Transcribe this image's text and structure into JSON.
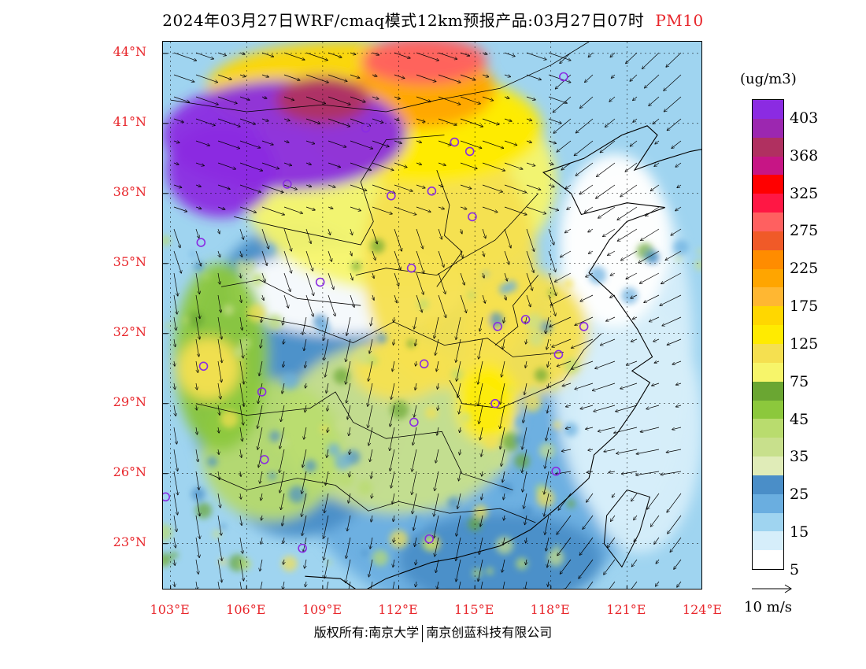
{
  "title": {
    "main": "2024年03月27日WRF/cmaq模式12km预报产品:03月27日07时",
    "pollutant": "PM10",
    "pollutant_color": "#e8262b"
  },
  "map": {
    "latitude_labels": [
      "44°N",
      "41°N",
      "38°N",
      "35°N",
      "32°N",
      "29°N",
      "26°N",
      "23°N"
    ],
    "longitude_labels": [
      "103°E",
      "106°E",
      "109°E",
      "112°E",
      "115°E",
      "118°E",
      "121°E",
      "124°E"
    ],
    "axis_label_color": "#e8262b",
    "lon_range": [
      102.7,
      124
    ],
    "lat_range": [
      21.0,
      44.5
    ],
    "wind_arrow_color": "#000000",
    "city_marker_color": "#8a2be2"
  },
  "legend": {
    "unit": "(ug/m3)",
    "levels": [
      {
        "label": "403",
        "color": "#8b2be2"
      },
      {
        "label": "",
        "color": "#9c27b0"
      },
      {
        "label": "368",
        "color": "#b03060"
      },
      {
        "label": "",
        "color": "#c71585"
      },
      {
        "label": "325",
        "color": "#ff0000"
      },
      {
        "label": "",
        "color": "#ff1744"
      },
      {
        "label": "275",
        "color": "#ff6060"
      },
      {
        "label": "",
        "color": "#f05a28"
      },
      {
        "label": "225",
        "color": "#ff8c00"
      },
      {
        "label": "",
        "color": "#ffa500"
      },
      {
        "label": "175",
        "color": "#ffb732"
      },
      {
        "label": "",
        "color": "#ffd700"
      },
      {
        "label": "125",
        "color": "#ffeb00"
      },
      {
        "label": "",
        "color": "#f5e050"
      },
      {
        "label": "75",
        "color": "#f7f56a"
      },
      {
        "label": "",
        "color": "#6aa632"
      },
      {
        "label": "45",
        "color": "#8cc83c"
      },
      {
        "label": "",
        "color": "#b9dc6e"
      },
      {
        "label": "35",
        "color": "#c8e08c"
      },
      {
        "label": "",
        "color": "#e0ecb8"
      },
      {
        "label": "25",
        "color": "#4a8ec8"
      },
      {
        "label": "",
        "color": "#6aaee0"
      },
      {
        "label": "15",
        "color": "#9fd4f0"
      },
      {
        "label": "",
        "color": "#d6eefa"
      },
      {
        "label": "5",
        "color": "#ffffff"
      }
    ]
  },
  "wind_reference": {
    "label": "10 m/s"
  },
  "footer": {
    "copyright_left": "版权所有:南京大学",
    "copyright_right": "南京创蓝科技有限公司"
  }
}
